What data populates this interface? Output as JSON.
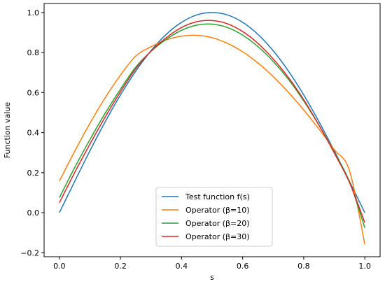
{
  "chart_data": {
    "type": "line",
    "title": "",
    "xlabel": "s",
    "ylabel": "Function value",
    "xlim": [
      -0.05,
      1.05
    ],
    "ylim": [
      -0.22,
      1.045
    ],
    "xticks": [
      0.0,
      0.2,
      0.4,
      0.6,
      0.8,
      1.0
    ],
    "xtick_labels": [
      "0.0",
      "0.2",
      "0.4",
      "0.6",
      "0.8",
      "1.0"
    ],
    "yticks": [
      -0.2,
      0.0,
      0.2,
      0.4,
      0.6,
      0.8,
      1.0
    ],
    "ytick_labels": [
      "−0.2",
      "0.0",
      "0.2",
      "0.4",
      "0.6",
      "0.8",
      "1.0"
    ],
    "grid": false,
    "legend_position": "lower-center",
    "series": [
      {
        "name": "Test function f(s)",
        "color": "#1f77b4",
        "x": [
          0.0,
          0.05,
          0.1,
          0.15,
          0.2,
          0.25,
          0.3,
          0.35,
          0.4,
          0.45,
          0.5,
          0.55,
          0.6,
          0.65,
          0.7,
          0.75,
          0.8,
          0.85,
          0.9,
          0.95,
          1.0
        ],
        "y": [
          0.0,
          0.156,
          0.309,
          0.454,
          0.588,
          0.707,
          0.809,
          0.891,
          0.951,
          0.988,
          1.0,
          0.988,
          0.951,
          0.891,
          0.809,
          0.707,
          0.588,
          0.454,
          0.309,
          0.156,
          0.0
        ]
      },
      {
        "name": "Operator (β=10)",
        "color": "#ff7f0e",
        "x": [
          0.0,
          0.05,
          0.1,
          0.15,
          0.2,
          0.25,
          0.3,
          0.35,
          0.4,
          0.45,
          0.5,
          0.55,
          0.6,
          0.65,
          0.7,
          0.75,
          0.8,
          0.85,
          0.9,
          0.95,
          1.0
        ],
        "y": [
          0.158,
          0.306,
          0.446,
          0.574,
          0.687,
          0.782,
          0.829,
          0.863,
          0.882,
          0.886,
          0.874,
          0.846,
          0.804,
          0.748,
          0.68,
          0.601,
          0.513,
          0.417,
          0.315,
          0.209,
          -0.158
        ]
      },
      {
        "name": "Operator (β=20)",
        "color": "#2ca02c",
        "x": [
          0.0,
          0.05,
          0.1,
          0.15,
          0.2,
          0.25,
          0.3,
          0.35,
          0.4,
          0.45,
          0.5,
          0.55,
          0.6,
          0.65,
          0.7,
          0.75,
          0.8,
          0.85,
          0.9,
          0.95,
          1.0
        ],
        "y": [
          0.075,
          0.225,
          0.365,
          0.497,
          0.617,
          0.727,
          0.806,
          0.866,
          0.911,
          0.937,
          0.942,
          0.925,
          0.887,
          0.83,
          0.756,
          0.666,
          0.558,
          0.436,
          0.301,
          0.154,
          -0.076
        ]
      },
      {
        "name": "Operator (β=30)",
        "color": "#d62728",
        "x": [
          0.0,
          0.05,
          0.1,
          0.15,
          0.2,
          0.25,
          0.3,
          0.35,
          0.4,
          0.45,
          0.5,
          0.55,
          0.6,
          0.65,
          0.7,
          0.75,
          0.8,
          0.85,
          0.9,
          0.95,
          1.0
        ],
        "y": [
          0.05,
          0.2,
          0.342,
          0.478,
          0.604,
          0.719,
          0.807,
          0.874,
          0.925,
          0.954,
          0.96,
          0.944,
          0.905,
          0.846,
          0.768,
          0.675,
          0.564,
          0.437,
          0.298,
          0.15,
          -0.05
        ]
      }
    ]
  }
}
